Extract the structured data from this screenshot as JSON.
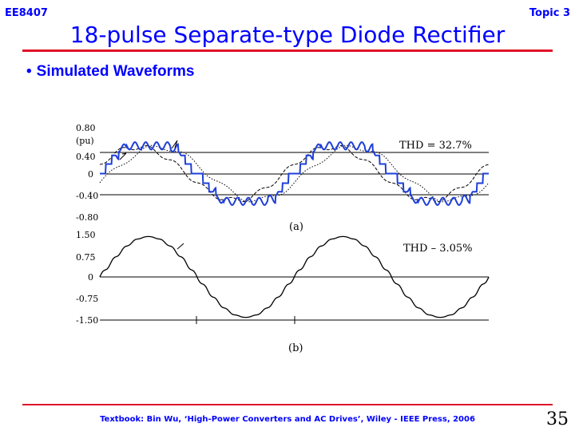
{
  "header": {
    "course_code": "EE8407",
    "topic": "Topic 3",
    "title": "18-pulse Separate-type Diode Rectifier"
  },
  "content": {
    "bullet": "Simulated Waveforms"
  },
  "footer": {
    "textbook": "Textbook: Bin Wu, ‘High-Power Converters and AC Drives’, Wiley - IEEE Press, 2006",
    "page_number": "35"
  },
  "colors": {
    "title_blue": "#0000ff",
    "rule_red": "#e0142a",
    "waveform_blue": "#1f3fd8"
  },
  "chart_data": [
    {
      "type": "line",
      "panel_label": "(a)",
      "ylabel": "(pu)",
      "annotation": "THD = 32.7%",
      "y_ticks": [
        "0.80",
        "0.40",
        "0",
        "-0.40",
        "-0.80"
      ],
      "y_tick_values": [
        0.8,
        0.4,
        0,
        -0.4,
        -0.8
      ],
      "ylim": [
        -0.8,
        0.8
      ],
      "cycles": 2,
      "series": [
        {
          "style": "solid",
          "color": "#1f3fd8",
          "shape": "multi-step 18-pulse line current",
          "amplitude_pu": 0.52
        },
        {
          "style": "dotted",
          "color": "#000000",
          "shape": "phase-shifted secondary current",
          "amplitude_pu": 0.5,
          "phase_deg": -20
        },
        {
          "style": "dashed",
          "color": "#000000",
          "shape": "phase-shifted secondary current",
          "amplitude_pu": 0.5,
          "phase_deg": 20
        }
      ]
    },
    {
      "type": "line",
      "panel_label": "(b)",
      "annotation": "THD – 3.05%",
      "y_ticks": [
        "1.50",
        "0.75",
        "0",
        "-0.75",
        "-1.50"
      ],
      "y_tick_values": [
        1.5,
        0.75,
        0,
        -0.75,
        -1.5
      ],
      "ylim": [
        -1.5,
        1.5
      ],
      "cycles": 2,
      "series": [
        {
          "style": "solid",
          "color": "#000000",
          "shape": "near-sinusoidal line current",
          "amplitude_pu": 1.4
        }
      ]
    }
  ]
}
